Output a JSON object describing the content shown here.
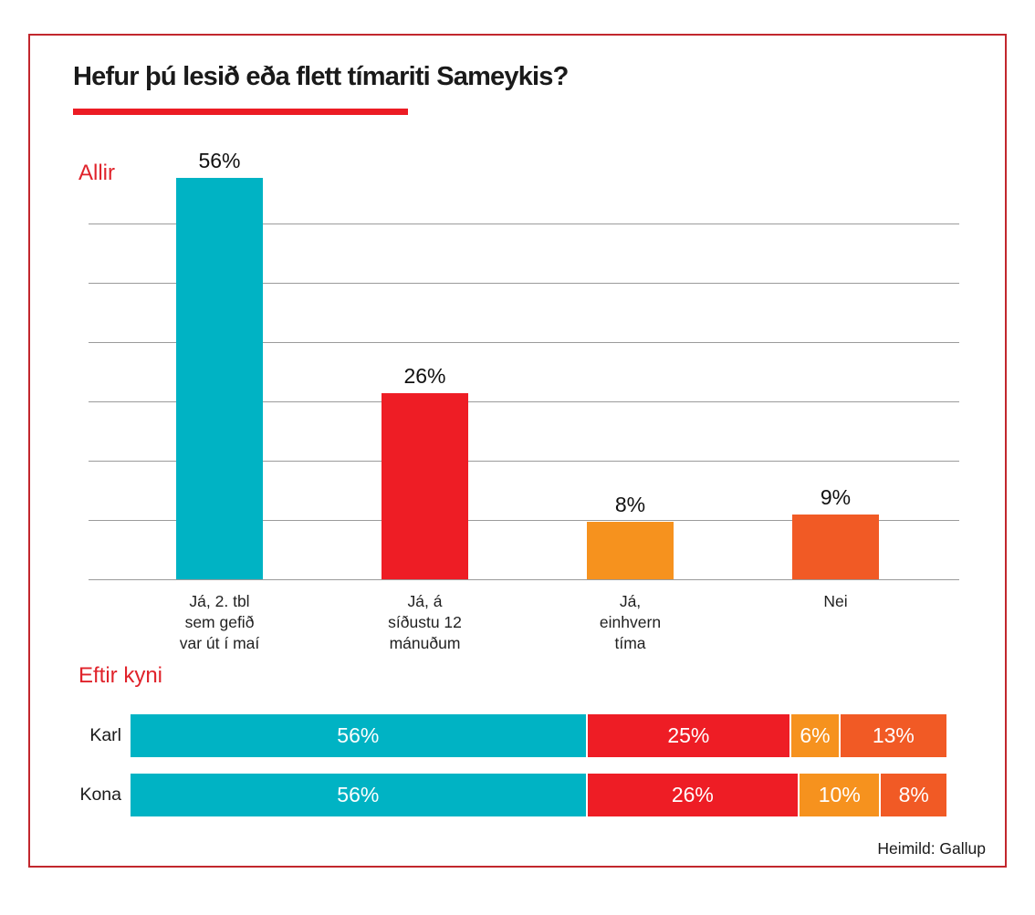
{
  "title": "Hefur þú lesið eða flett tímariti Sameykis?",
  "source": "Heimild: Gallup",
  "colors": {
    "teal": "#00b3c4",
    "red": "#ee1d25",
    "orange": "#f6921e",
    "dark_orange": "#f15a25",
    "accent_red": "#e0232b",
    "underline_red": "#ec1c24",
    "frame_red": "#c2272d",
    "gridline_gray": "#9b9b9b"
  },
  "chart_data": [
    {
      "type": "bar",
      "section_label": "Allir",
      "categories": [
        "Já, 2. tbl sem gefið var út í maí",
        "Já, á síðustu 12 mánuðum",
        "Já, einhvern tíma",
        "Nei"
      ],
      "categories_lines": [
        [
          "Já, 2. tbl",
          "sem gefið",
          "var út í maí"
        ],
        [
          "Já, á",
          "síðustu 12",
          "mánuðum"
        ],
        [
          "Já,",
          "einhvern",
          "tíma"
        ],
        [
          "Nei"
        ]
      ],
      "values": [
        56,
        26,
        8,
        9
      ],
      "value_labels": [
        "56%",
        "26%",
        "8%",
        "9%"
      ],
      "bar_colors": [
        "#00b3c4",
        "#ee1d25",
        "#f6921e",
        "#f15a25"
      ],
      "title": "",
      "xlabel": "",
      "ylabel": "",
      "grid": true,
      "gridline_count": 7,
      "axis_tick_labels": "none"
    },
    {
      "type": "bar",
      "subtype": "stacked-horizontal",
      "section_label": "Eftir kyni",
      "categories": [
        "Karl",
        "Kona"
      ],
      "series": [
        {
          "name": "Já, 2. tbl sem gefið var út í maí",
          "color": "#00b3c4",
          "values": [
            56,
            56
          ],
          "value_labels": [
            "56%",
            "56%"
          ]
        },
        {
          "name": "Já, á síðustu 12 mánuðum",
          "color": "#ee1d25",
          "values": [
            25,
            26
          ],
          "value_labels": [
            "25%",
            "26%"
          ]
        },
        {
          "name": "Já, einhvern tíma",
          "color": "#f6921e",
          "values": [
            6,
            10
          ],
          "value_labels": [
            "6%",
            "10%"
          ]
        },
        {
          "name": "Nei",
          "color": "#f15a25",
          "values": [
            13,
            8
          ],
          "value_labels": [
            "13%",
            "8%"
          ]
        }
      ],
      "xlim": [
        0,
        100
      ],
      "grid": false,
      "legend": "none"
    }
  ]
}
